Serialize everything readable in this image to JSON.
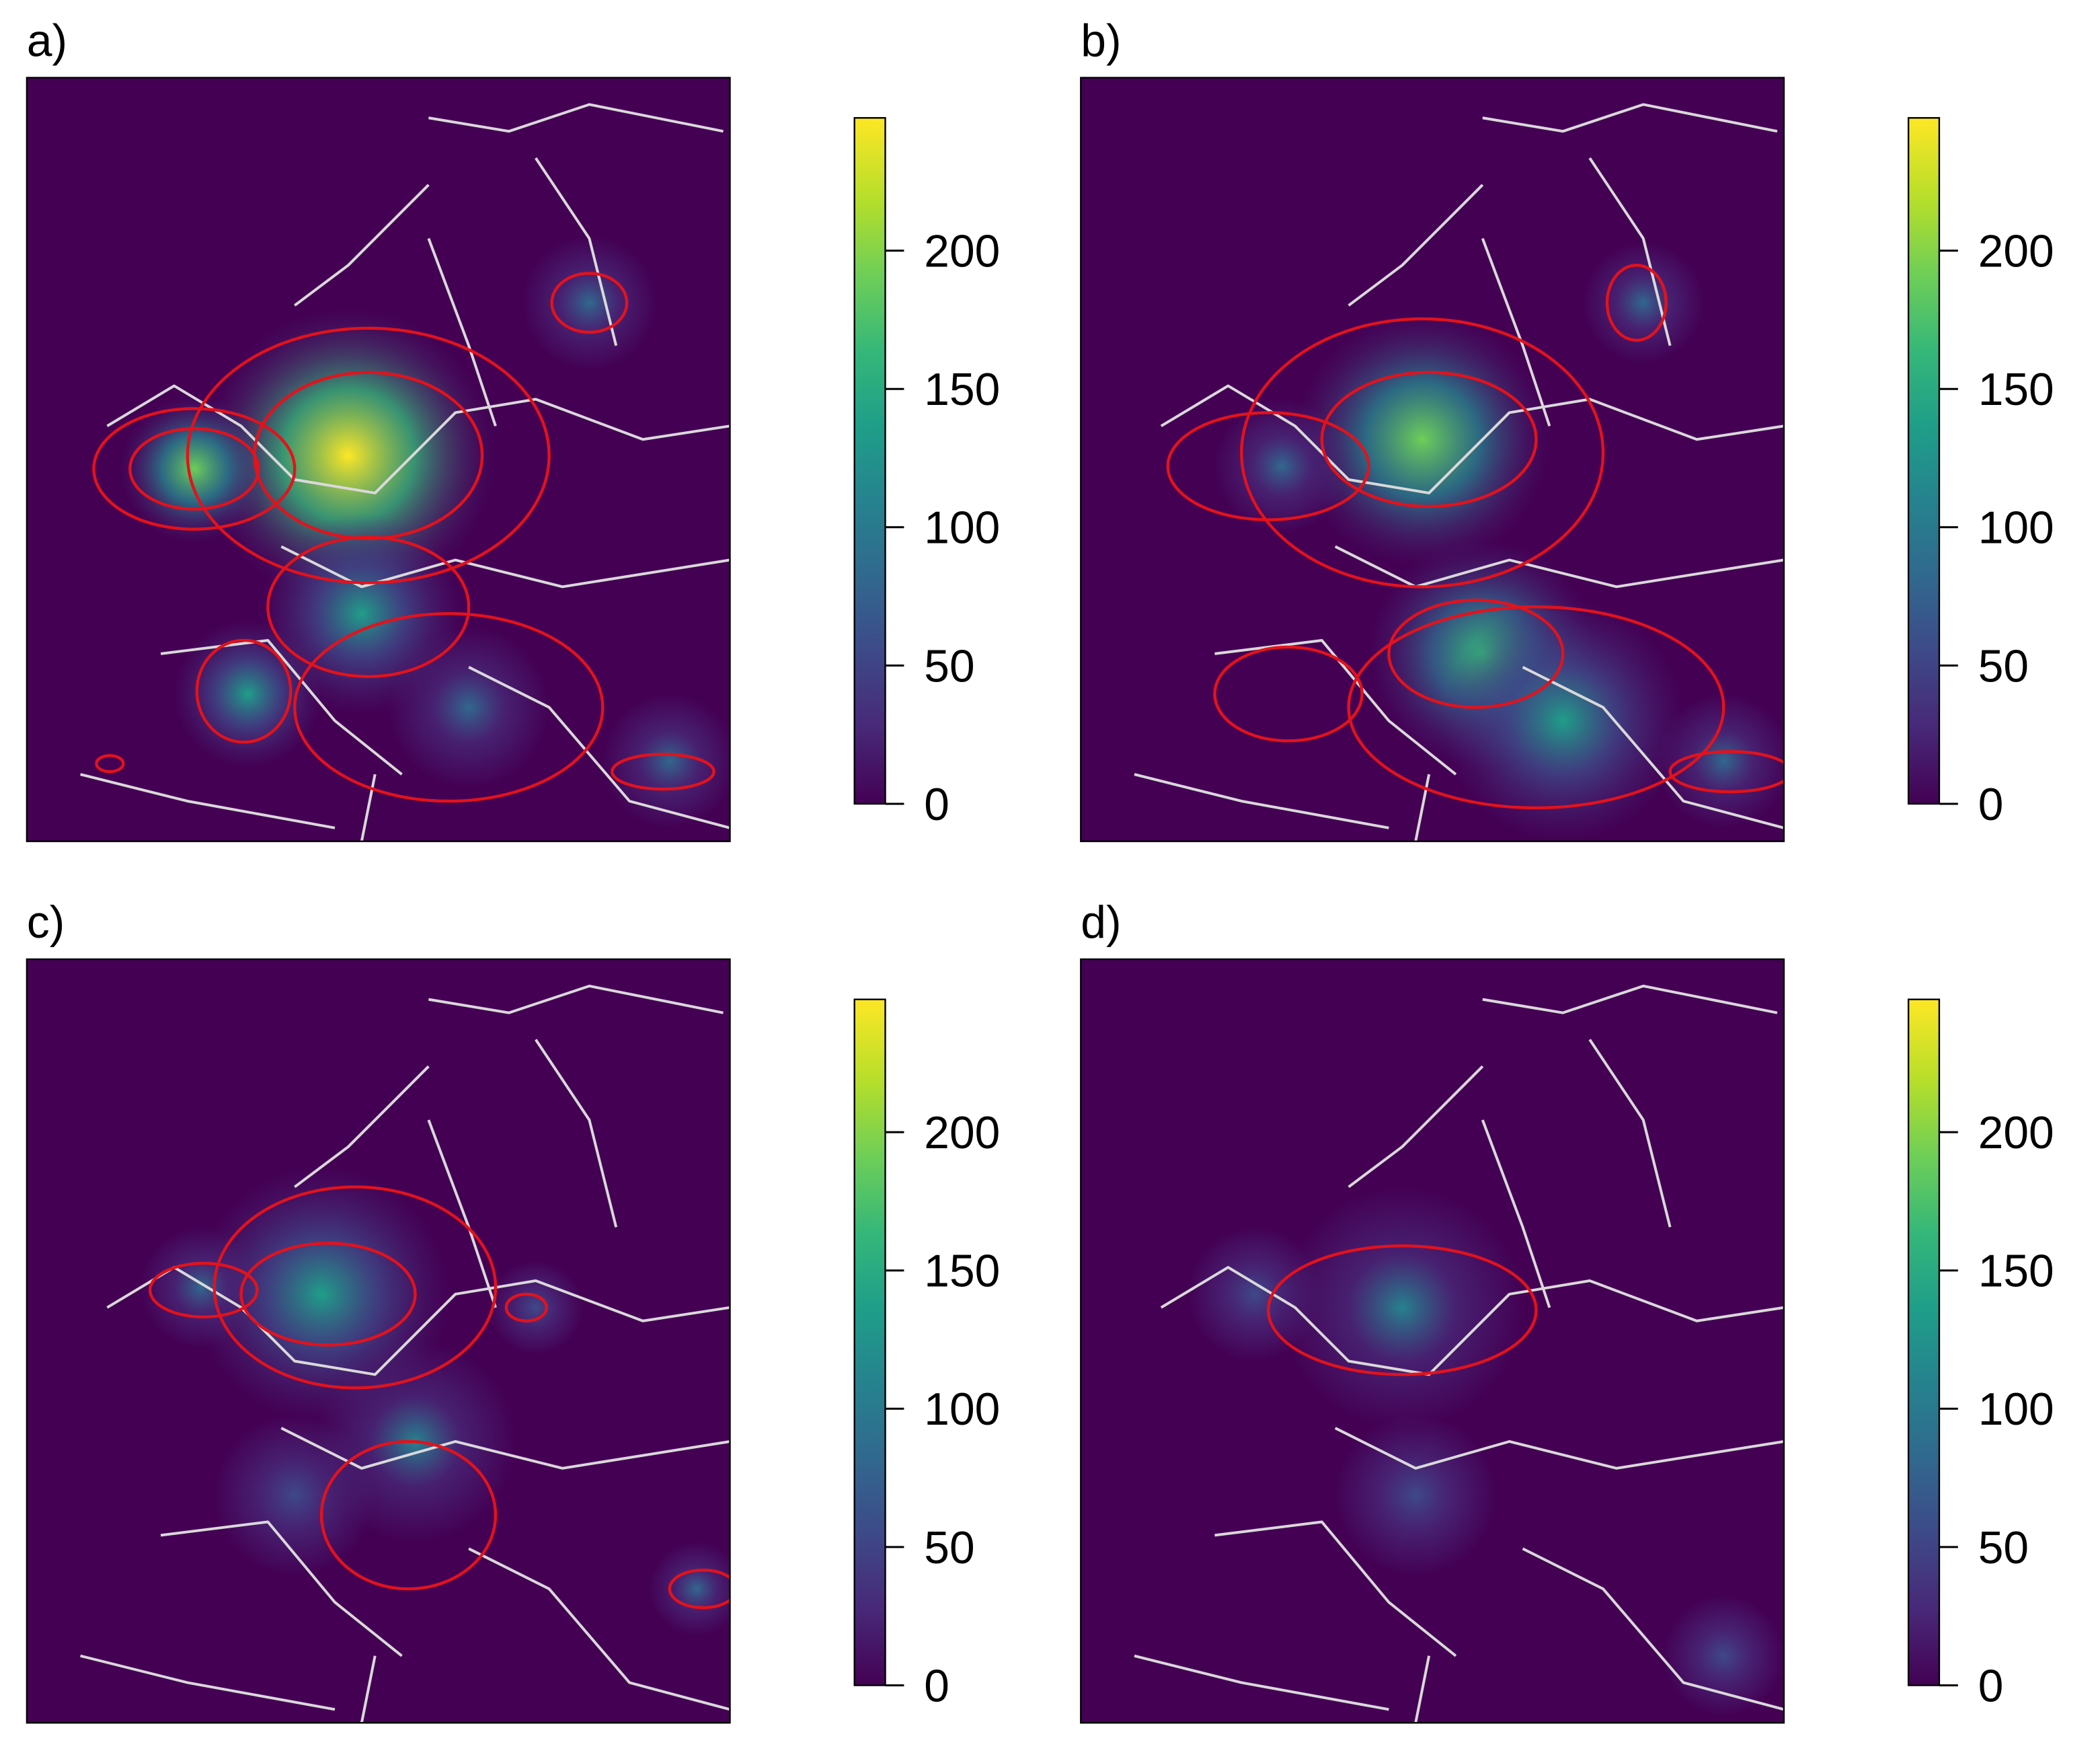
{
  "chart_data": [
    {
      "type": "heatmap",
      "title": "a)",
      "ylim": [
        0,
        248
      ],
      "yticks": [
        0,
        50,
        100,
        150,
        200
      ]
    },
    {
      "type": "heatmap",
      "title": "b)",
      "ylim": [
        0,
        248
      ],
      "yticks": [
        0,
        50,
        100,
        150,
        200
      ]
    },
    {
      "type": "heatmap",
      "title": "c)",
      "ylim": [
        0,
        248
      ],
      "yticks": [
        0,
        50,
        100,
        150,
        200
      ]
    },
    {
      "type": "heatmap",
      "title": "d)",
      "ylim": [
        0,
        248
      ],
      "yticks": [
        0,
        50,
        100,
        150,
        200
      ]
    }
  ]
}
